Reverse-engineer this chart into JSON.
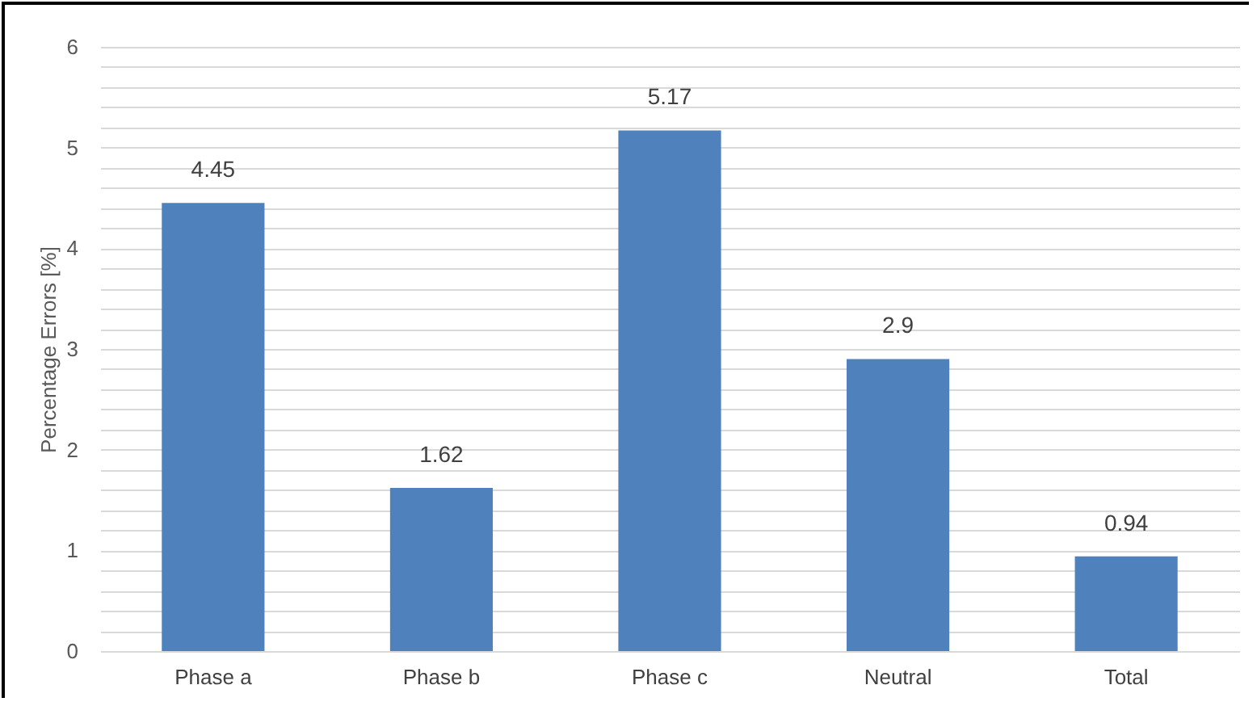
{
  "chart_data": {
    "type": "bar",
    "ylabel": "Percentage Errors [%]",
    "categories": [
      "Phase a",
      "Phase b",
      "Phase c",
      "Neutral",
      "Total"
    ],
    "values": [
      4.45,
      1.62,
      5.17,
      2.9,
      0.94
    ],
    "color": "#4f81bd",
    "ylim": [
      0,
      6
    ],
    "yticks": [
      0,
      {
        "value": 0.2,
        "label": null
      },
      {
        "value": 0.4,
        "label": null
      },
      {
        "value": 0.6,
        "label": null
      },
      {
        "value": 0.8,
        "label": null
      },
      1,
      {
        "value": 1.2,
        "label": null
      },
      {
        "value": 1.4,
        "label": null
      },
      {
        "value": 1.6,
        "label": null
      },
      {
        "value": 1.8,
        "label": null
      },
      2,
      {
        "value": 2.2,
        "label": null
      },
      {
        "value": 2.4,
        "label": null
      },
      {
        "value": 2.6,
        "label": null
      },
      {
        "value": 2.8,
        "label": null
      },
      3,
      {
        "value": 3.2,
        "label": null
      },
      {
        "value": 3.4,
        "label": null
      },
      {
        "value": 3.6,
        "label": null
      },
      {
        "value": 3.8,
        "label": null
      },
      4,
      {
        "value": 4.2,
        "label": null
      },
      {
        "value": 4.4,
        "label": null
      },
      {
        "value": 4.6,
        "label": null
      },
      {
        "value": 4.8,
        "label": null
      },
      5,
      {
        "value": 5.2,
        "label": null
      },
      {
        "value": 5.4,
        "label": null
      },
      {
        "value": 5.6,
        "label": null
      },
      {
        "value": 5.8,
        "label": null
      },
      6
    ],
    "grid": true,
    "data_labels": true
  }
}
